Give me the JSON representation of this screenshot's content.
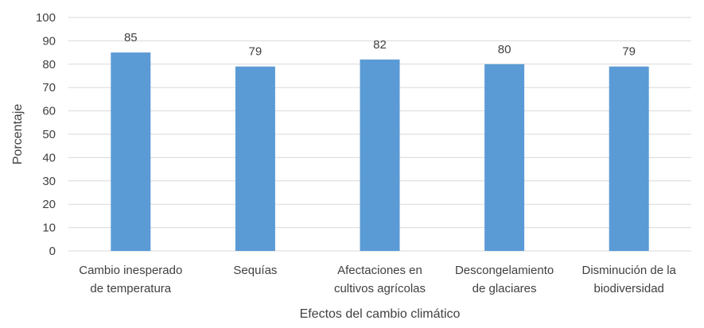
{
  "chart_data": {
    "type": "bar",
    "categories": [
      [
        "Cambio inesperado",
        "de temperatura"
      ],
      [
        "Sequías"
      ],
      [
        "Afectaciones en",
        "cultivos agrícolas"
      ],
      [
        "Descongelamiento",
        "de glaciares"
      ],
      [
        "Disminución de la",
        "biodiversidad"
      ]
    ],
    "values": [
      85,
      79,
      82,
      80,
      79
    ],
    "xlabel": "Efectos del cambio climático",
    "ylabel": "Porcentaje",
    "ylim": [
      0,
      100
    ],
    "yticks": [
      0,
      10,
      20,
      30,
      40,
      50,
      60,
      70,
      80,
      90,
      100
    ],
    "grid": true,
    "bar_color": "#5b9bd5",
    "grid_color": "#d9d9d9"
  }
}
